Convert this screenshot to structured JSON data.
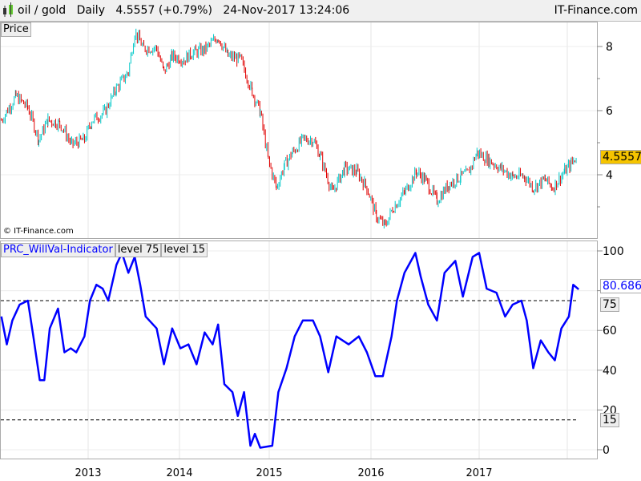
{
  "header": {
    "symbol": "oil / gold",
    "period": "Daily",
    "last": "4.5557",
    "change": "(+0.79%)",
    "datetime": "24-Nov-2017 13:24:06",
    "site": "IT-Finance.com",
    "icon": "candlestick-icon"
  },
  "price_panel": {
    "label": "Price",
    "copyright": "© IT-Finance.com",
    "last_badge": "4.5557",
    "badge_color": "#f5c400"
  },
  "indicator_panel": {
    "label": "PRC_WillVal-Indicator",
    "level75_label": "level 75",
    "level15_label": "level 15",
    "last_badge": "80.686",
    "line_color": "#0000ff",
    "level75_badge": "75",
    "level15_badge": "15"
  },
  "chart_data": [
    {
      "type": "candlestick",
      "title": "oil / gold",
      "yticks": [
        "4",
        "6",
        "8"
      ],
      "ylim": [
        1.9,
        8.75
      ],
      "xticks": [
        "2013",
        "2014",
        "2015",
        "2016",
        "2017"
      ],
      "up_color": "#00c8c8",
      "down_color": "#e00000",
      "grid": true,
      "x": [
        2012.05,
        2012.21,
        2012.34,
        2012.46,
        2012.56,
        2012.69,
        2012.82,
        2012.96,
        2013.04,
        2013.18,
        2013.31,
        2013.44,
        2013.51,
        2013.61,
        2013.75,
        2013.83,
        2013.92,
        2014.05,
        2014.14,
        2014.28,
        2014.43,
        2014.54,
        2014.68,
        2014.81,
        2014.9,
        2014.99,
        2015.07,
        2015.15,
        2015.23,
        2015.33,
        2015.43,
        2015.5,
        2015.62,
        2015.74,
        2015.86,
        2015.96,
        2016.05,
        2016.13,
        2016.2,
        2016.31,
        2016.42,
        2016.5,
        2016.61,
        2016.72,
        2016.83,
        2016.9,
        2016.98,
        2017.09,
        2017.2,
        2017.31,
        2017.42,
        2017.5,
        2017.61,
        2017.68,
        2017.79,
        2017.9
      ],
      "values": [
        5.7,
        6.45,
        6.1,
        5.1,
        5.7,
        5.6,
        4.95,
        5.1,
        5.7,
        5.95,
        6.7,
        7.2,
        8.45,
        7.95,
        7.95,
        7.2,
        7.7,
        7.6,
        7.8,
        7.9,
        8.3,
        7.7,
        7.6,
        6.6,
        5.95,
        4.45,
        3.6,
        4.3,
        4.7,
        5.1,
        5.1,
        4.6,
        3.45,
        4.2,
        4.1,
        3.6,
        2.7,
        2.4,
        2.95,
        3.45,
        4.1,
        3.85,
        3.2,
        3.7,
        3.95,
        4.05,
        4.7,
        4.45,
        4.2,
        3.95,
        3.95,
        3.6,
        3.85,
        3.6,
        4.1,
        4.55
      ]
    },
    {
      "type": "line",
      "title": "PRC_WillVal-Indicator",
      "yticks": [
        "0",
        "20",
        "40",
        "60",
        "80",
        "100"
      ],
      "ylim": [
        -3,
        105
      ],
      "levels": [
        75,
        15
      ],
      "grid": true,
      "x": [
        2012.05,
        2012.11,
        2012.17,
        2012.25,
        2012.34,
        2012.4,
        2012.47,
        2012.52,
        2012.58,
        2012.67,
        2012.74,
        2012.81,
        2012.87,
        2012.96,
        2013.02,
        2013.09,
        2013.16,
        2013.22,
        2013.31,
        2013.37,
        2013.44,
        2013.51,
        2013.57,
        2013.63,
        2013.75,
        2013.83,
        2013.92,
        2014.01,
        2014.1,
        2014.19,
        2014.28,
        2014.37,
        2014.43,
        2014.5,
        2014.59,
        2014.65,
        2014.72,
        2014.79,
        2014.84,
        2014.9,
        2015.03,
        2015.09,
        2015.17,
        2015.25,
        2015.33,
        2015.43,
        2015.5,
        2015.58,
        2015.66,
        2015.78,
        2015.88,
        2015.96,
        2016.04,
        2016.11,
        2016.19,
        2016.24,
        2016.31,
        2016.41,
        2016.46,
        2016.53,
        2016.61,
        2016.68,
        2016.78,
        2016.85,
        2016.94,
        2017.0,
        2017.07,
        2017.16,
        2017.24,
        2017.31,
        2017.39,
        2017.44,
        2017.5,
        2017.57,
        2017.64,
        2017.7,
        2017.76,
        2017.83,
        2017.87,
        2017.92
      ],
      "values": [
        67,
        53,
        65,
        73,
        75,
        57,
        35,
        35,
        61,
        71,
        49,
        51,
        49,
        57,
        75,
        83,
        81,
        75,
        93,
        99,
        89,
        97,
        83,
        67,
        61,
        43,
        61,
        51,
        53,
        43,
        59,
        53,
        63,
        33,
        29,
        17,
        29,
        2,
        8,
        1,
        2,
        29,
        41,
        57,
        65,
        65,
        57,
        39,
        57,
        53,
        57,
        49,
        37,
        37,
        57,
        75,
        89,
        99,
        87,
        73,
        65,
        89,
        95,
        77,
        97,
        99,
        81,
        79,
        67,
        73,
        75,
        65,
        41,
        55,
        49,
        45,
        61,
        67,
        83,
        80.686
      ]
    }
  ]
}
